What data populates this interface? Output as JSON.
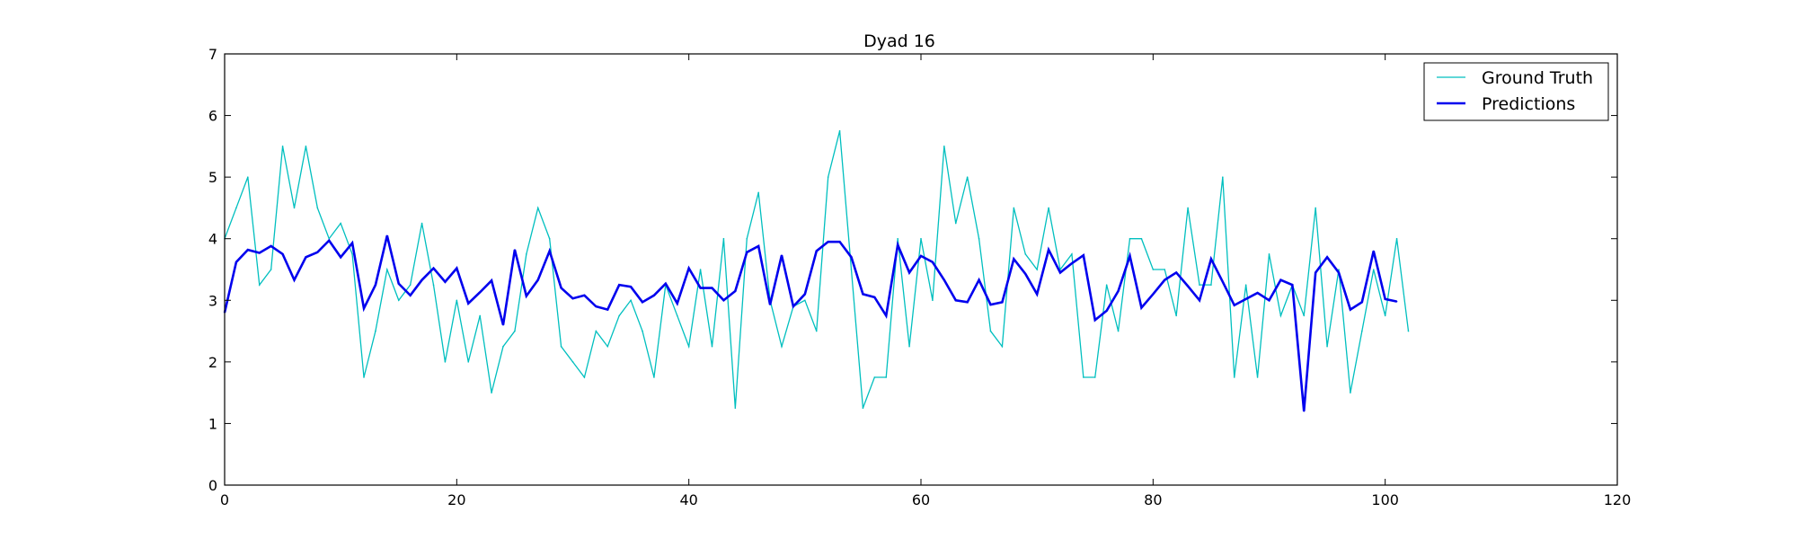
{
  "chart_data": {
    "type": "line",
    "title": "Dyad 16",
    "xlabel": "",
    "ylabel": "",
    "xlim": [
      0,
      120
    ],
    "ylim": [
      0,
      7
    ],
    "xticks": [
      0,
      20,
      40,
      60,
      80,
      100,
      120
    ],
    "yticks": [
      0,
      1,
      2,
      3,
      4,
      5,
      6,
      7
    ],
    "grid": false,
    "legend_position": "top-right",
    "series": [
      {
        "name": "Ground Truth",
        "color": "#00bfbf",
        "x": [
          0,
          1,
          2,
          3,
          4,
          5,
          6,
          7,
          8,
          9,
          10,
          11,
          12,
          13,
          14,
          15,
          16,
          17,
          18,
          19,
          20,
          21,
          22,
          23,
          24,
          25,
          26,
          27,
          28,
          29,
          30,
          31,
          32,
          33,
          34,
          35,
          36,
          37,
          38,
          39,
          40,
          41,
          42,
          43,
          44,
          45,
          46,
          47,
          48,
          49,
          50,
          51,
          52,
          53,
          54,
          55,
          56,
          57,
          58,
          59,
          60,
          61,
          62,
          63,
          64,
          65,
          66,
          67,
          68,
          69,
          70,
          71,
          72,
          73,
          74,
          75,
          76,
          77,
          78,
          79,
          80,
          81,
          82,
          83,
          84,
          85,
          86,
          87,
          88,
          89,
          90,
          91,
          92,
          93,
          94,
          95,
          96,
          97,
          98,
          99,
          100,
          101,
          102
        ],
        "values": [
          4.0,
          4.5,
          5.0,
          3.25,
          3.5,
          5.5,
          4.5,
          5.5,
          4.5,
          4.0,
          4.25,
          3.75,
          1.75,
          2.5,
          3.5,
          3.0,
          3.25,
          4.25,
          3.25,
          2.0,
          3.0,
          2.0,
          2.75,
          1.5,
          2.25,
          2.5,
          3.75,
          4.5,
          4.0,
          2.25,
          2.0,
          1.75,
          2.5,
          2.25,
          2.75,
          3.0,
          2.5,
          1.75,
          3.25,
          2.75,
          2.25,
          3.5,
          2.25,
          4.0,
          1.25,
          4.0,
          4.75,
          3.0,
          2.25,
          2.9,
          3.0,
          2.5,
          5.0,
          5.75,
          3.5,
          1.25,
          1.75,
          1.75,
          4.0,
          2.25,
          4.0,
          3.0,
          5.5,
          4.25,
          5.0,
          4.0,
          2.5,
          2.25,
          4.5,
          3.75,
          3.5,
          4.5,
          3.5,
          3.75,
          1.75,
          1.75,
          3.25,
          2.5,
          4.0,
          4.0,
          3.5,
          3.5,
          2.75,
          4.5,
          3.25,
          3.25,
          5.0,
          1.75,
          3.25,
          1.75,
          3.75,
          2.75,
          3.25,
          2.75,
          4.5,
          2.25,
          3.5,
          1.5,
          2.5,
          3.5,
          2.75,
          4.0,
          2.5
        ]
      },
      {
        "name": "Predictions",
        "color": "#0000ee",
        "x": [
          0,
          1,
          2,
          3,
          4,
          5,
          6,
          7,
          8,
          9,
          10,
          11,
          12,
          13,
          14,
          15,
          16,
          17,
          18,
          19,
          20,
          21,
          22,
          23,
          24,
          25,
          26,
          27,
          28,
          29,
          30,
          31,
          32,
          33,
          34,
          35,
          36,
          37,
          38,
          39,
          40,
          41,
          42,
          43,
          44,
          45,
          46,
          47,
          48,
          49,
          50,
          51,
          52,
          53,
          54,
          55,
          56,
          57,
          58,
          59,
          60,
          61,
          62,
          63,
          64,
          65,
          66,
          67,
          68,
          69,
          70,
          71,
          72,
          73,
          74,
          75,
          76,
          77,
          78,
          79,
          80,
          81,
          82,
          83,
          84,
          85,
          86,
          87,
          88,
          89,
          90,
          91,
          92,
          93,
          94,
          95,
          96,
          97,
          98,
          99,
          100,
          101
        ],
        "values": [
          2.8,
          3.62,
          3.82,
          3.77,
          3.88,
          3.75,
          3.33,
          3.7,
          3.78,
          3.97,
          3.7,
          3.93,
          2.87,
          3.25,
          4.05,
          3.27,
          3.08,
          3.33,
          3.52,
          3.3,
          3.52,
          2.95,
          3.13,
          3.32,
          2.6,
          3.82,
          3.07,
          3.33,
          3.8,
          3.2,
          3.03,
          3.08,
          2.9,
          2.85,
          3.25,
          3.22,
          2.97,
          3.08,
          3.27,
          2.95,
          3.52,
          3.2,
          3.2,
          3.0,
          3.15,
          3.78,
          3.88,
          2.93,
          3.73,
          2.9,
          3.1,
          3.8,
          3.95,
          3.95,
          3.7,
          3.1,
          3.05,
          2.75,
          3.9,
          3.45,
          3.72,
          3.62,
          3.33,
          3.0,
          2.97,
          3.33,
          2.93,
          2.97,
          3.67,
          3.43,
          3.1,
          3.82,
          3.45,
          3.6,
          3.73,
          2.68,
          2.83,
          3.15,
          3.72,
          2.88,
          3.1,
          3.33,
          3.45,
          3.23,
          3.0,
          3.67,
          3.3,
          2.92,
          3.02,
          3.12,
          3.0,
          3.33,
          3.25,
          1.2,
          3.45,
          3.7,
          3.45,
          2.85,
          2.97,
          3.8,
          3.02,
          2.98
        ]
      }
    ]
  }
}
